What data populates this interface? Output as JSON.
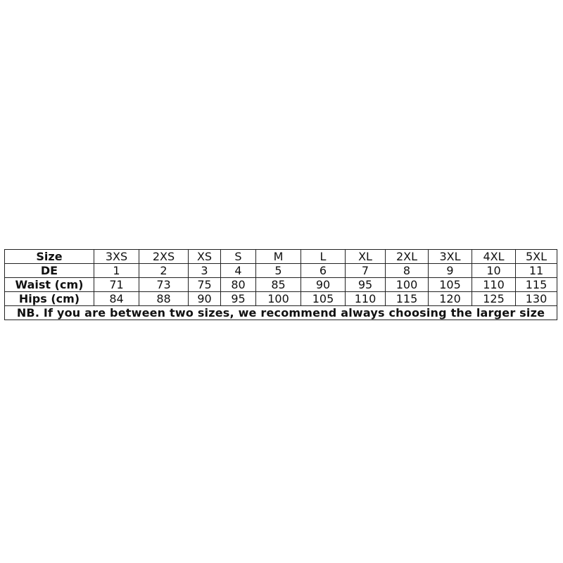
{
  "table": {
    "rows": [
      {
        "label": "Size",
        "values": [
          "3XS",
          "2XS",
          "XS",
          "S",
          "M",
          "L",
          "XL",
          "2XL",
          "3XL",
          "4XL",
          "5XL"
        ]
      },
      {
        "label": "DE",
        "values": [
          "1",
          "2",
          "3",
          "4",
          "5",
          "6",
          "7",
          "8",
          "9",
          "10",
          "11"
        ]
      },
      {
        "label": "Waist (cm)",
        "values": [
          "71",
          "73",
          "75",
          "80",
          "85",
          "90",
          "95",
          "100",
          "105",
          "110",
          "115"
        ]
      },
      {
        "label": "Hips (cm)",
        "values": [
          "84",
          "88",
          "90",
          "95",
          "100",
          "105",
          "110",
          "115",
          "120",
          "125",
          "130"
        ]
      }
    ],
    "note": "NB. If you are between two sizes, we recommend always choosing the larger size"
  }
}
